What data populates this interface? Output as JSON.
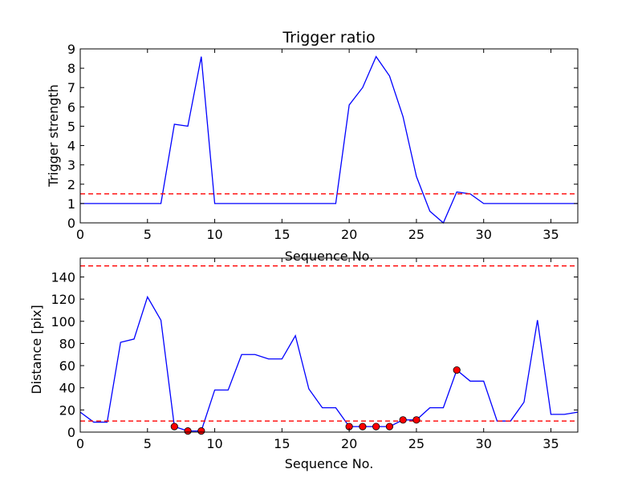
{
  "chart_data": [
    {
      "type": "line",
      "title": "Trigger ratio",
      "xlabel": "Sequence No.",
      "ylabel": "Trigger strength",
      "xlim": [
        0,
        37
      ],
      "ylim": [
        0,
        9
      ],
      "xticks": [
        0,
        5,
        10,
        15,
        20,
        25,
        30,
        35
      ],
      "yticks": [
        0,
        1,
        2,
        3,
        4,
        5,
        6,
        7,
        8,
        9
      ],
      "series": [
        {
          "color": "#0000ff",
          "x": [
            0,
            1,
            2,
            3,
            4,
            5,
            6,
            7,
            8,
            9,
            10,
            11,
            12,
            13,
            14,
            15,
            16,
            17,
            18,
            19,
            20,
            21,
            22,
            23,
            24,
            25,
            26,
            27,
            28,
            29,
            30,
            31,
            32,
            33,
            34,
            35,
            36,
            37
          ],
          "y": [
            1,
            1,
            1,
            1,
            1,
            1,
            1,
            5.1,
            5.0,
            8.6,
            1,
            1,
            1,
            1,
            1,
            1,
            1,
            1,
            1,
            1,
            6.1,
            7.0,
            8.6,
            7.6,
            5.5,
            2.4,
            0.6,
            0,
            1.6,
            1.5,
            1,
            1,
            1,
            1,
            1,
            1,
            1,
            1
          ]
        }
      ],
      "hlines": [
        {
          "y": 1.5,
          "color": "#ff0000",
          "style": "dashed"
        }
      ],
      "grid": false
    },
    {
      "type": "line",
      "title": "",
      "xlabel": "Sequence No.",
      "ylabel": "Distance [pix]",
      "xlim": [
        0,
        37
      ],
      "ylim": [
        0,
        157
      ],
      "xticks": [
        0,
        5,
        10,
        15,
        20,
        25,
        30,
        35
      ],
      "yticks": [
        0,
        20,
        40,
        60,
        80,
        100,
        120,
        140
      ],
      "series": [
        {
          "color": "#0000ff",
          "x": [
            0,
            1,
            2,
            3,
            4,
            5,
            6,
            7,
            8,
            9,
            10,
            11,
            12,
            13,
            14,
            15,
            16,
            17,
            18,
            19,
            20,
            21,
            22,
            23,
            24,
            25,
            26,
            27,
            28,
            29,
            30,
            31,
            32,
            33,
            34,
            35,
            36,
            37
          ],
          "y": [
            18,
            9,
            9,
            81,
            84,
            122,
            101,
            5,
            1,
            1,
            38,
            38,
            70,
            70,
            66,
            66,
            87,
            39,
            22,
            22,
            5,
            5,
            5,
            5,
            11,
            11,
            22,
            22,
            56,
            46,
            46,
            10,
            10,
            27,
            101,
            16,
            16,
            18
          ]
        }
      ],
      "markers": {
        "color": "#ff0000",
        "x": [
          7,
          8,
          9,
          20,
          21,
          22,
          23,
          24,
          25,
          28
        ],
        "y": [
          5,
          1,
          1,
          5,
          5,
          5,
          5,
          11,
          11,
          56
        ]
      },
      "hlines": [
        {
          "y": 150,
          "color": "#ff0000",
          "style": "dashed"
        },
        {
          "y": 10,
          "color": "#ff0000",
          "style": "dashed"
        }
      ],
      "grid": false
    }
  ]
}
